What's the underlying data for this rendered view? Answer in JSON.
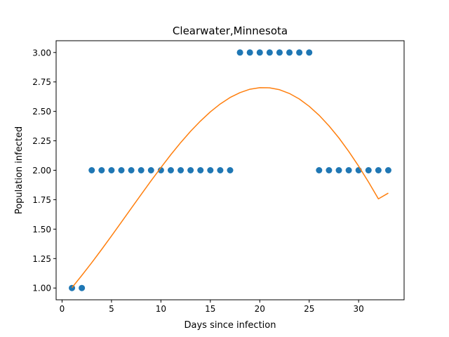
{
  "chart_data": {
    "type": "scatter",
    "title": "Clearwater,Minnesota",
    "xlabel": "Days since infection",
    "ylabel": "Population infected",
    "xlim": [
      -0.6,
      34.6
    ],
    "ylim": [
      0.9,
      3.1
    ],
    "xticks": [
      0,
      5,
      10,
      15,
      20,
      25,
      30
    ],
    "yticks": [
      1.0,
      1.25,
      1.5,
      1.75,
      2.0,
      2.25,
      2.5,
      2.75,
      3.0
    ],
    "ytick_labels": [
      "1.00",
      "1.25",
      "1.50",
      "1.75",
      "2.00",
      "2.25",
      "2.50",
      "2.75",
      "3.00"
    ],
    "grid": false,
    "legend": false,
    "series": [
      {
        "kind": "scatter",
        "color": "#1f77b4",
        "x": [
          1,
          2,
          3,
          4,
          5,
          6,
          7,
          8,
          9,
          10,
          11,
          12,
          13,
          14,
          15,
          16,
          17,
          18,
          19,
          20,
          21,
          22,
          23,
          24,
          25,
          26,
          27,
          28,
          29,
          30,
          31,
          32,
          33
        ],
        "y": [
          1,
          1,
          2,
          2,
          2,
          2,
          2,
          2,
          2,
          2,
          2,
          2,
          2,
          2,
          2,
          2,
          2,
          3,
          3,
          3,
          3,
          3,
          3,
          3,
          3,
          2,
          2,
          2,
          2,
          2,
          2,
          2,
          2
        ]
      },
      {
        "kind": "line",
        "color": "#ff7f0e",
        "x": [
          1,
          2,
          3,
          4,
          5,
          6,
          7,
          8,
          9,
          10,
          11,
          12,
          13,
          14,
          15,
          16,
          17,
          18,
          19,
          20,
          21,
          22,
          23,
          24,
          25,
          26,
          27,
          28,
          29,
          30,
          31,
          32,
          33
        ],
        "y": [
          1.003,
          1.107,
          1.215,
          1.327,
          1.442,
          1.559,
          1.677,
          1.794,
          1.91,
          2.023,
          2.132,
          2.235,
          2.331,
          2.418,
          2.496,
          2.563,
          2.618,
          2.659,
          2.688,
          2.701,
          2.7,
          2.684,
          2.652,
          2.605,
          2.543,
          2.467,
          2.377,
          2.275,
          2.16,
          2.035,
          1.9,
          1.757,
          1.806
        ]
      }
    ]
  }
}
